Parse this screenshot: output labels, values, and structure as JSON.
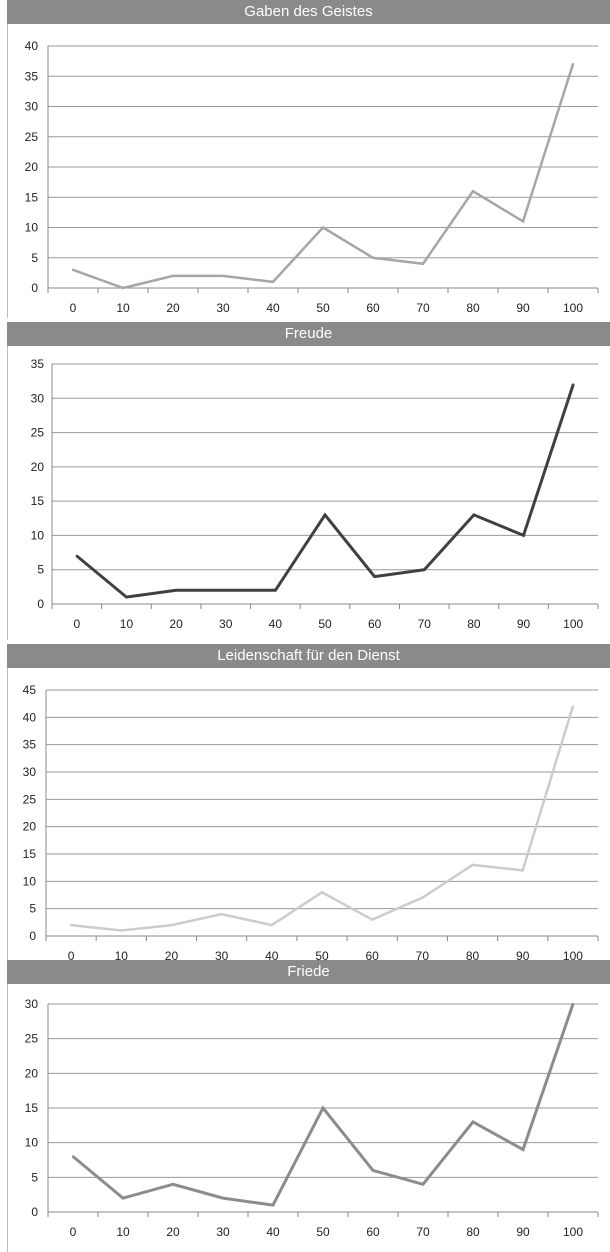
{
  "chart_data": [
    {
      "type": "line",
      "title": "Gaben des Geistes",
      "x": [
        0,
        10,
        20,
        30,
        40,
        50,
        60,
        70,
        80,
        90,
        100
      ],
      "series": [
        {
          "values": [
            3,
            0,
            2,
            2,
            1,
            10,
            5,
            4,
            16,
            11,
            37
          ]
        }
      ],
      "ylim": [
        0,
        40
      ],
      "yticks": [
        0,
        5,
        10,
        15,
        20,
        25,
        30,
        35,
        40
      ],
      "color": "#a6a6a6",
      "grid": true
    },
    {
      "type": "line",
      "title": "Freude",
      "x": [
        0,
        10,
        20,
        30,
        40,
        50,
        60,
        70,
        80,
        90,
        100
      ],
      "series": [
        {
          "values": [
            7,
            1,
            2,
            2,
            2,
            13,
            4,
            5,
            13,
            10,
            32
          ]
        }
      ],
      "ylim": [
        0,
        35
      ],
      "yticks": [
        0,
        5,
        10,
        15,
        20,
        25,
        30,
        35
      ],
      "color": "#404040",
      "grid": true
    },
    {
      "type": "line",
      "title": "Leidenschaft für den Dienst",
      "x": [
        0,
        10,
        20,
        30,
        40,
        50,
        60,
        70,
        80,
        90,
        100
      ],
      "series": [
        {
          "values": [
            2,
            1,
            2,
            4,
            2,
            8,
            3,
            7,
            13,
            12,
            42
          ]
        }
      ],
      "ylim": [
        0,
        45
      ],
      "yticks": [
        0,
        5,
        10,
        15,
        20,
        25,
        30,
        35,
        40,
        45
      ],
      "color": "#cccccc",
      "grid": true
    },
    {
      "type": "line",
      "title": "Friede",
      "x": [
        0,
        10,
        20,
        30,
        40,
        50,
        60,
        70,
        80,
        90,
        100
      ],
      "series": [
        {
          "values": [
            8,
            2,
            4,
            2,
            1,
            15,
            6,
            4,
            13,
            9,
            30
          ]
        }
      ],
      "ylim": [
        0,
        30
      ],
      "yticks": [
        0,
        5,
        10,
        15,
        20,
        25,
        30
      ],
      "color": "#8c8c8c",
      "grid": true
    }
  ]
}
